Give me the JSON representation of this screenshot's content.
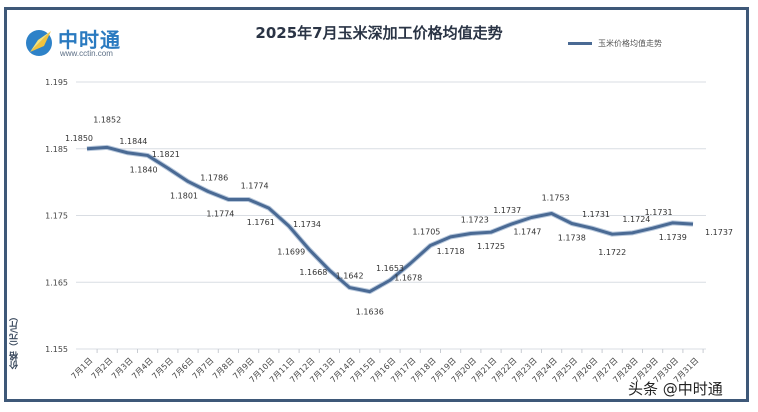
{
  "header": {
    "logo_text": "中时通",
    "logo_url": "www.cctin.com",
    "title": "2025年7月玉米深加工价格均值走势"
  },
  "legend": {
    "label": "玉米价格均值走势",
    "color": "#4a6a94"
  },
  "axis": {
    "ylabel": "价格（元/斤）",
    "yticks": [
      "1.195",
      "1.185",
      "1.175",
      "1.165",
      "1.155"
    ]
  },
  "watermark": "头条 @中时通",
  "colors": {
    "line": "#4a6a94",
    "frame": "#3e5878",
    "grid": "#d9dde3"
  },
  "chart_data": {
    "type": "line",
    "title": "2025年7月玉米深加工价格均值走势",
    "xlabel": "",
    "ylabel": "价格（元/斤）",
    "ylim": [
      1.155,
      1.195
    ],
    "yticks": [
      1.155,
      1.165,
      1.175,
      1.185,
      1.195
    ],
    "grid": true,
    "legend_position": "top-right",
    "categories": [
      "7月1日",
      "7月2日",
      "7月3日",
      "7月4日",
      "7月5日",
      "7月6日",
      "7月7日",
      "7月8日",
      "7月9日",
      "7月10日",
      "7月11日",
      "7月12日",
      "7月13日",
      "7月14日",
      "7月15日",
      "7月16日",
      "7月17日",
      "7月18日",
      "7月19日",
      "7月20日",
      "7月21日",
      "7月22日",
      "7月23日",
      "7月24日",
      "7月25日",
      "7月26日",
      "7月27日",
      "7月28日",
      "7月29日",
      "7月30日",
      "7月31日"
    ],
    "series": [
      {
        "name": "玉米价格均值走势",
        "values": [
          1.185,
          1.1852,
          1.1844,
          1.184,
          1.1821,
          1.1801,
          1.1786,
          1.1774,
          1.1774,
          1.1761,
          1.1734,
          1.1699,
          1.1668,
          1.1642,
          1.1636,
          1.1653,
          1.1678,
          1.1705,
          1.1718,
          1.1723,
          1.1725,
          1.1737,
          1.1747,
          1.1753,
          1.1738,
          1.1731,
          1.1722,
          1.1724,
          1.1731,
          1.1739,
          1.1737
        ]
      }
    ]
  }
}
